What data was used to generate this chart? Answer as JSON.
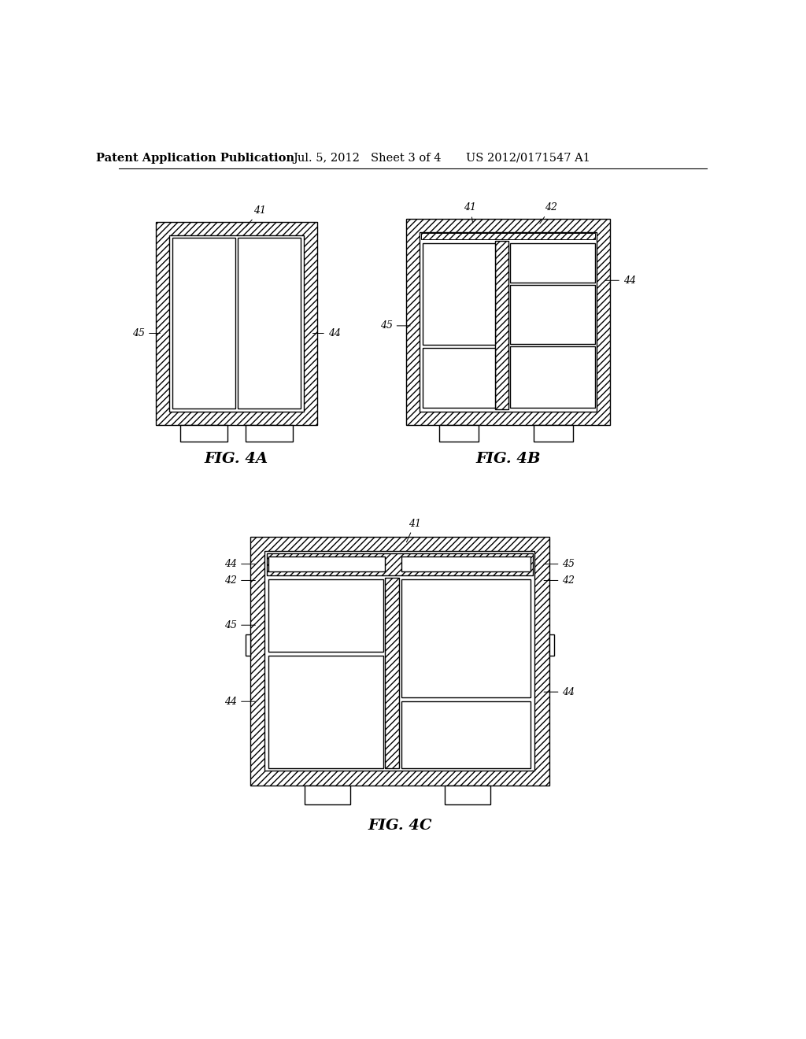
{
  "background_color": "#ffffff",
  "header_text": "Patent Application Publication",
  "header_date": "Jul. 5, 2012",
  "header_sheet": "Sheet 3 of 4",
  "header_patent": "US 2012/0171547 A1",
  "line_color": "#000000",
  "fig4a_label": "FIG. 4A",
  "fig4b_label": "FIG. 4B",
  "fig4c_label": "FIG. 4C",
  "label_fontsize": 14,
  "annotation_fontsize": 9,
  "header_fontsize": 10.5
}
